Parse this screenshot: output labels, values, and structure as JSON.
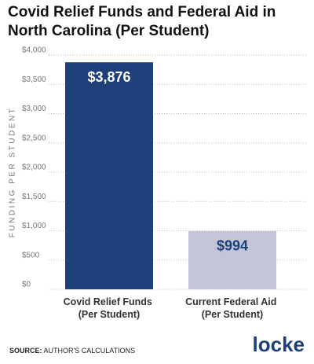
{
  "chart_data": {
    "type": "bar",
    "title": "Covid Relief Funds and Federal Aid in North Carolina (Per Student)",
    "ylabel": "FUNDING PER STUDENT",
    "categories": [
      "Covid Relief Funds (Per Student)",
      "Current Federal Aid (Per Student)"
    ],
    "values": [
      3876,
      994
    ],
    "value_labels": [
      "$3,876",
      "$994"
    ],
    "colors": [
      "#1d3f7a",
      "#c4c6d8"
    ],
    "value_label_colors": [
      "#ffffff",
      "#1d3f7a"
    ],
    "ylim": [
      0,
      4000
    ],
    "yticks": [
      {
        "value": 0,
        "label": "$0"
      },
      {
        "value": 500,
        "label": "$500"
      },
      {
        "value": 1000,
        "label": "$1,000"
      },
      {
        "value": 1500,
        "label": "$1,500"
      },
      {
        "value": 2000,
        "label": "$2,000"
      },
      {
        "value": 2500,
        "label": "$2,500"
      },
      {
        "value": 3000,
        "label": "$3,000"
      },
      {
        "value": 3500,
        "label": "$3,500"
      },
      {
        "value": 4000,
        "label": "$4,000"
      }
    ],
    "grid": true,
    "source_label": "SOURCE:",
    "source": "AUTHOR'S CALCULATIONS",
    "logo": "locke"
  }
}
